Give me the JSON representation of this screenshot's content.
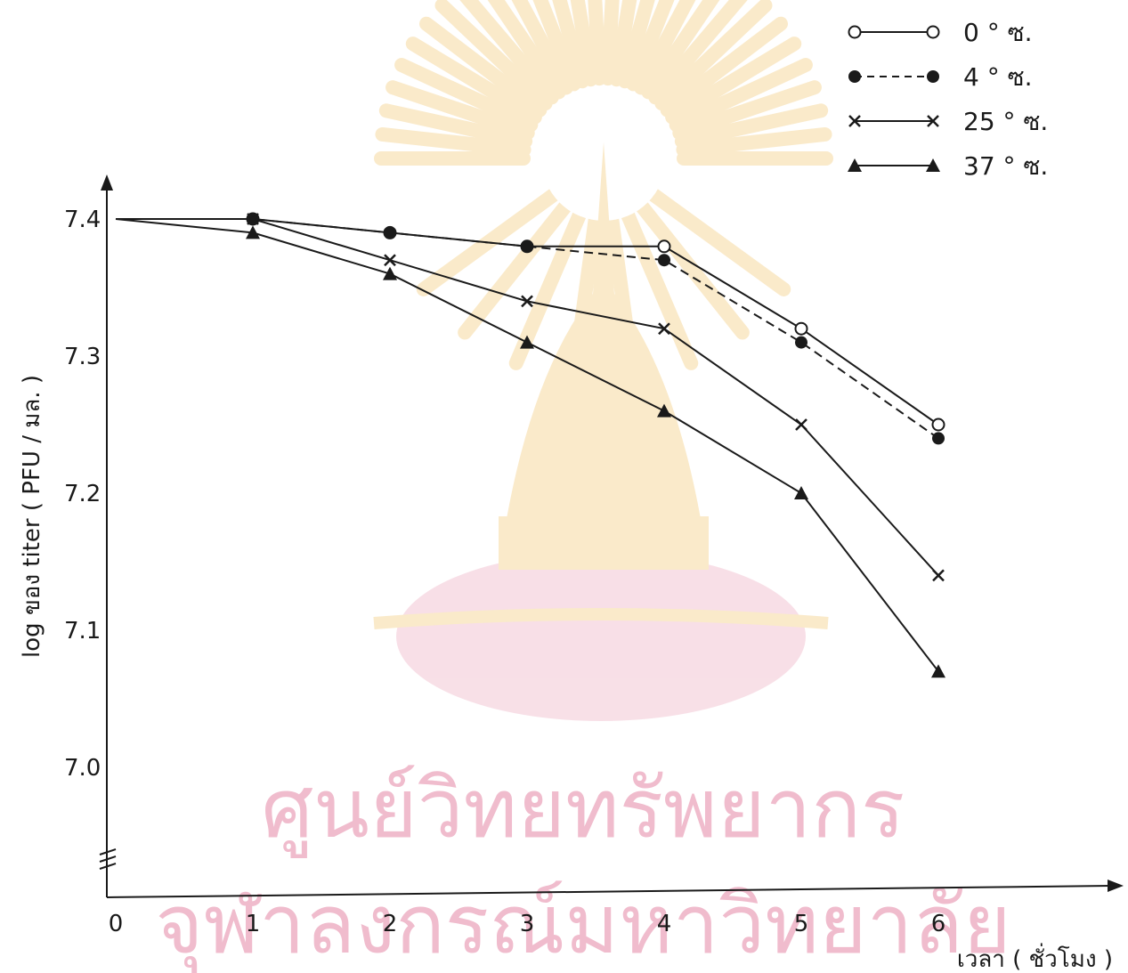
{
  "chart_data": {
    "type": "line",
    "xlabel": "เวลา ( ชั่วโมง )",
    "ylabel": "log ของ titer ( PFU / มล. )",
    "x_ticks": [
      "0",
      "1",
      "2",
      "3",
      "4",
      "5",
      "6"
    ],
    "y_ticks": [
      "7.0",
      "7.1",
      "7.2",
      "7.3",
      "7.4"
    ],
    "xlim": [
      0,
      7.4
    ],
    "ylim": [
      6.93,
      7.44
    ],
    "axis_break": "y",
    "grid": false,
    "legend_position": "top-right",
    "series": [
      {
        "name": "0 ° ซ.",
        "marker": "open-circle",
        "line": "solid",
        "x": [
          0,
          1,
          2,
          3,
          4,
          5,
          6
        ],
        "y": [
          7.4,
          7.4,
          7.39,
          7.38,
          7.38,
          7.32,
          7.25
        ]
      },
      {
        "name": "4 ° ซ.",
        "marker": "filled-circle",
        "line": "dashed",
        "x": [
          0,
          1,
          2,
          3,
          4,
          5,
          6
        ],
        "y": [
          7.4,
          7.4,
          7.39,
          7.38,
          7.37,
          7.31,
          7.24
        ]
      },
      {
        "name": "25 ° ซ.",
        "marker": "cross",
        "line": "solid",
        "x": [
          0,
          1,
          2,
          3,
          4,
          5,
          6
        ],
        "y": [
          7.4,
          7.4,
          7.37,
          7.34,
          7.32,
          7.25,
          7.14
        ]
      },
      {
        "name": "37 ° ซ.",
        "marker": "filled-triangle",
        "line": "solid",
        "x": [
          0,
          1,
          2,
          3,
          4,
          5,
          6
        ],
        "y": [
          7.4,
          7.39,
          7.36,
          7.31,
          7.26,
          7.2,
          7.07
        ]
      }
    ]
  },
  "watermark": {
    "line1": "ศูนย์วิทยทรัพยากร",
    "line2": "จุฬาลงกรณ์มหาวิทยาลัย",
    "color": "#f0bccd"
  },
  "colors": {
    "ink": "#1a1a1a",
    "emblem": "#f6d9a0",
    "pink": "#f3c6d4"
  }
}
